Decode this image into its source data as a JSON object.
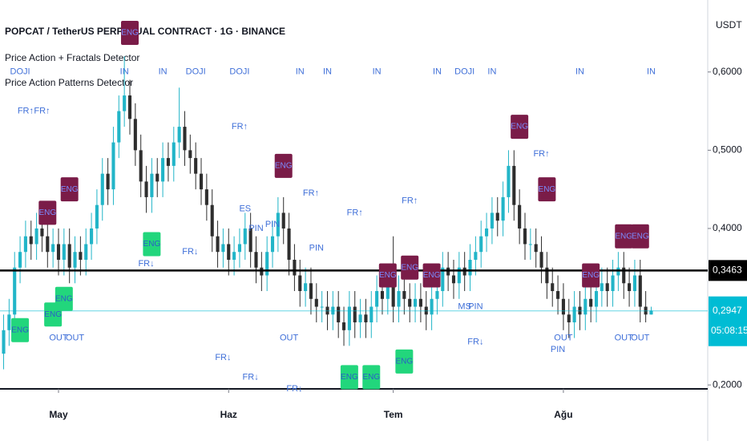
{
  "chart_data": {
    "type": "candlestick",
    "title": "POPCAT / TetherUS PERPETUAL CONTRACT · 1G · BINANCE",
    "indicators": [
      "Price Action + Fractals Detector",
      "Price Action Patterns Detector"
    ],
    "y_axis_label": "USDT",
    "x": [
      0,
      1,
      2,
      3,
      4,
      5,
      6,
      7,
      8,
      9,
      10,
      11,
      12,
      13,
      14,
      15,
      16,
      17,
      18,
      19,
      20,
      21,
      22,
      23,
      24,
      25,
      26,
      27,
      28,
      29,
      30,
      31,
      32,
      33,
      34,
      35,
      36,
      37,
      38,
      39,
      40,
      41,
      42,
      43,
      44,
      45,
      46,
      47,
      48,
      49,
      50,
      51,
      52,
      53,
      54,
      55,
      56,
      57,
      58,
      59,
      60,
      61,
      62,
      63,
      64,
      65,
      66,
      67,
      68,
      69,
      70,
      71,
      72,
      73,
      74,
      75,
      76,
      77,
      78,
      79,
      80,
      81,
      82,
      83,
      84,
      85,
      86,
      87,
      88,
      89,
      90,
      91,
      92,
      93,
      94,
      95,
      96,
      97,
      98,
      99,
      100,
      101,
      102,
      103,
      104,
      105,
      106,
      107,
      108,
      109,
      110,
      111,
      112,
      113,
      114,
      115,
      116,
      117,
      118
    ],
    "open": [
      0.24,
      0.27,
      0.29,
      0.35,
      0.37,
      0.39,
      0.38,
      0.4,
      0.39,
      0.37,
      0.38,
      0.36,
      0.38,
      0.35,
      0.37,
      0.36,
      0.38,
      0.4,
      0.43,
      0.47,
      0.45,
      0.51,
      0.55,
      0.57,
      0.54,
      0.5,
      0.46,
      0.44,
      0.47,
      0.46,
      0.49,
      0.48,
      0.51,
      0.53,
      0.5,
      0.49,
      0.47,
      0.45,
      0.43,
      0.39,
      0.37,
      0.38,
      0.36,
      0.37,
      0.38,
      0.4,
      0.37,
      0.35,
      0.34,
      0.37,
      0.39,
      0.42,
      0.4,
      0.36,
      0.34,
      0.32,
      0.33,
      0.31,
      0.3,
      0.3,
      0.29,
      0.3,
      0.28,
      0.27,
      0.3,
      0.28,
      0.29,
      0.28,
      0.3,
      0.32,
      0.31,
      0.33,
      0.3,
      0.32,
      0.31,
      0.3,
      0.31,
      0.3,
      0.29,
      0.31,
      0.32,
      0.35,
      0.34,
      0.33,
      0.35,
      0.34,
      0.36,
      0.37,
      0.39,
      0.4,
      0.42,
      0.41,
      0.44,
      0.48,
      0.43,
      0.4,
      0.38,
      0.38,
      0.37,
      0.35,
      0.33,
      0.32,
      0.31,
      0.29,
      0.28,
      0.3,
      0.29,
      0.31,
      0.3,
      0.32,
      0.33,
      0.32,
      0.34,
      0.35,
      0.33,
      0.32,
      0.34,
      0.3,
      0.29
    ],
    "high": [
      0.29,
      0.31,
      0.37,
      0.39,
      0.41,
      0.41,
      0.42,
      0.42,
      0.41,
      0.4,
      0.4,
      0.4,
      0.4,
      0.39,
      0.39,
      0.4,
      0.42,
      0.45,
      0.49,
      0.49,
      0.53,
      0.57,
      0.62,
      0.59,
      0.56,
      0.52,
      0.48,
      0.49,
      0.49,
      0.51,
      0.51,
      0.53,
      0.58,
      0.55,
      0.52,
      0.51,
      0.49,
      0.47,
      0.45,
      0.41,
      0.4,
      0.4,
      0.39,
      0.4,
      0.42,
      0.42,
      0.39,
      0.37,
      0.39,
      0.41,
      0.44,
      0.44,
      0.42,
      0.38,
      0.36,
      0.35,
      0.35,
      0.33,
      0.32,
      0.32,
      0.32,
      0.32,
      0.3,
      0.32,
      0.32,
      0.31,
      0.31,
      0.32,
      0.34,
      0.34,
      0.35,
      0.39,
      0.34,
      0.34,
      0.33,
      0.33,
      0.33,
      0.32,
      0.33,
      0.34,
      0.37,
      0.37,
      0.36,
      0.37,
      0.37,
      0.38,
      0.39,
      0.41,
      0.42,
      0.44,
      0.44,
      0.46,
      0.5,
      0.5,
      0.45,
      0.42,
      0.4,
      0.4,
      0.39,
      0.37,
      0.35,
      0.34,
      0.33,
      0.31,
      0.32,
      0.32,
      0.33,
      0.33,
      0.34,
      0.35,
      0.35,
      0.36,
      0.37,
      0.37,
      0.35,
      0.36,
      0.36,
      0.32,
      0.3
    ],
    "low": [
      0.22,
      0.25,
      0.27,
      0.33,
      0.35,
      0.36,
      0.36,
      0.37,
      0.35,
      0.35,
      0.34,
      0.34,
      0.33,
      0.33,
      0.34,
      0.34,
      0.36,
      0.38,
      0.41,
      0.43,
      0.43,
      0.49,
      0.53,
      0.52,
      0.48,
      0.44,
      0.42,
      0.42,
      0.44,
      0.44,
      0.46,
      0.46,
      0.49,
      0.48,
      0.47,
      0.45,
      0.43,
      0.41,
      0.37,
      0.35,
      0.35,
      0.34,
      0.34,
      0.35,
      0.36,
      0.35,
      0.33,
      0.32,
      0.32,
      0.35,
      0.37,
      0.38,
      0.34,
      0.32,
      0.3,
      0.3,
      0.29,
      0.28,
      0.28,
      0.27,
      0.27,
      0.26,
      0.25,
      0.25,
      0.26,
      0.26,
      0.26,
      0.26,
      0.28,
      0.29,
      0.29,
      0.28,
      0.28,
      0.29,
      0.28,
      0.28,
      0.28,
      0.27,
      0.27,
      0.29,
      0.3,
      0.32,
      0.31,
      0.31,
      0.32,
      0.32,
      0.34,
      0.35,
      0.37,
      0.38,
      0.39,
      0.39,
      0.42,
      0.41,
      0.38,
      0.36,
      0.36,
      0.35,
      0.33,
      0.31,
      0.3,
      0.29,
      0.27,
      0.26,
      0.26,
      0.27,
      0.27,
      0.28,
      0.28,
      0.3,
      0.3,
      0.3,
      0.32,
      0.31,
      0.3,
      0.3,
      0.28,
      0.28,
      0.29
    ],
    "close": [
      0.27,
      0.29,
      0.35,
      0.37,
      0.39,
      0.38,
      0.4,
      0.39,
      0.37,
      0.38,
      0.36,
      0.38,
      0.35,
      0.37,
      0.36,
      0.38,
      0.4,
      0.43,
      0.47,
      0.45,
      0.51,
      0.55,
      0.57,
      0.54,
      0.5,
      0.46,
      0.44,
      0.47,
      0.46,
      0.49,
      0.48,
      0.51,
      0.53,
      0.5,
      0.49,
      0.47,
      0.45,
      0.43,
      0.39,
      0.37,
      0.38,
      0.36,
      0.37,
      0.38,
      0.4,
      0.37,
      0.35,
      0.34,
      0.37,
      0.39,
      0.42,
      0.4,
      0.36,
      0.34,
      0.32,
      0.33,
      0.31,
      0.3,
      0.3,
      0.29,
      0.3,
      0.28,
      0.27,
      0.3,
      0.28,
      0.29,
      0.28,
      0.3,
      0.32,
      0.31,
      0.33,
      0.3,
      0.32,
      0.31,
      0.3,
      0.31,
      0.3,
      0.29,
      0.31,
      0.32,
      0.35,
      0.34,
      0.33,
      0.35,
      0.34,
      0.36,
      0.37,
      0.39,
      0.4,
      0.42,
      0.41,
      0.44,
      0.48,
      0.43,
      0.4,
      0.38,
      0.38,
      0.37,
      0.35,
      0.33,
      0.32,
      0.31,
      0.29,
      0.28,
      0.3,
      0.29,
      0.31,
      0.3,
      0.32,
      0.33,
      0.32,
      0.34,
      0.35,
      0.33,
      0.32,
      0.34,
      0.3,
      0.29,
      0.295
    ],
    "up_color": "#22b5c8",
    "down_color": "#2e2e2e",
    "xlim": [
      -0.66,
      128.3
    ],
    "xticks": [
      {
        "value": 10,
        "label": "May"
      },
      {
        "value": 41,
        "label": "Haz"
      },
      {
        "value": 71,
        "label": "Tem"
      },
      {
        "value": 102,
        "label": "Ağu"
      }
    ],
    "ylim": [
      0.195,
      0.692
    ],
    "yticks": [
      {
        "value": 0.2,
        "label": "0,2000"
      },
      {
        "value": 0.4,
        "label": "0,4000"
      },
      {
        "value": 0.5,
        "label": "0,5000"
      },
      {
        "value": 0.6,
        "label": "0,6000"
      }
    ],
    "hline": {
      "value": 0.3463,
      "label": "0,3463",
      "color": "#000000"
    },
    "last_price": {
      "value": 0.2947,
      "label": "0,2947",
      "countdown": "05:08:15",
      "color": "#00bcd4"
    },
    "annotations": [
      {
        "text": "ENG",
        "kind": "bear",
        "x": 8,
        "y": 0.42
      },
      {
        "text": "ENG",
        "kind": "bear",
        "x": 12,
        "y": 0.45
      },
      {
        "text": "ENG",
        "kind": "bear",
        "x": 23,
        "y": 0.65
      },
      {
        "text": "ENG",
        "kind": "bear",
        "x": 51,
        "y": 0.48
      },
      {
        "text": "ENG",
        "kind": "bear",
        "x": 70,
        "y": 0.34
      },
      {
        "text": "ENG",
        "kind": "bear",
        "x": 74,
        "y": 0.35
      },
      {
        "text": "ENG",
        "kind": "bear",
        "x": 78,
        "y": 0.34
      },
      {
        "text": "ENG",
        "kind": "bear",
        "x": 94,
        "y": 0.53
      },
      {
        "text": "ENG",
        "kind": "bear",
        "x": 99,
        "y": 0.45
      },
      {
        "text": "ENG",
        "kind": "bear",
        "x": 107,
        "y": 0.34
      },
      {
        "text": "ENG",
        "kind": "bear",
        "x": 113,
        "y": 0.39
      },
      {
        "text": "ENG",
        "kind": "bear",
        "x": 116,
        "y": 0.39
      },
      {
        "text": "ENG",
        "kind": "bull",
        "x": 3,
        "y": 0.27
      },
      {
        "text": "ENG",
        "kind": "bull",
        "x": 9,
        "y": 0.29
      },
      {
        "text": "ENG",
        "kind": "bull",
        "x": 11,
        "y": 0.31
      },
      {
        "text": "ENG",
        "kind": "bull",
        "x": 27,
        "y": 0.38
      },
      {
        "text": "ENG",
        "kind": "bull",
        "x": 63,
        "y": 0.21
      },
      {
        "text": "ENG",
        "kind": "bull",
        "x": 67,
        "y": 0.21
      },
      {
        "text": "ENG",
        "kind": "bull",
        "x": 73,
        "y": 0.23
      },
      {
        "text": "FR↑",
        "kind": "label",
        "x": 4,
        "y": 0.55
      },
      {
        "text": "FR↑",
        "kind": "label",
        "x": 7,
        "y": 0.55
      },
      {
        "text": "FR↑",
        "kind": "label",
        "x": 43,
        "y": 0.53
      },
      {
        "text": "FR↑",
        "kind": "label",
        "x": 56,
        "y": 0.445
      },
      {
        "text": "FR↑",
        "kind": "label",
        "x": 64,
        "y": 0.42
      },
      {
        "text": "FR↑",
        "kind": "label",
        "x": 74,
        "y": 0.435
      },
      {
        "text": "FR↑",
        "kind": "label",
        "x": 98,
        "y": 0.495
      },
      {
        "text": "FR↓",
        "kind": "label",
        "x": 26,
        "y": 0.355
      },
      {
        "text": "FR↓",
        "kind": "label",
        "x": 34,
        "y": 0.37
      },
      {
        "text": "FR↓",
        "kind": "label",
        "x": 40,
        "y": 0.235
      },
      {
        "text": "FR↓",
        "kind": "label",
        "x": 45,
        "y": 0.21
      },
      {
        "text": "FR↓",
        "kind": "label",
        "x": 53,
        "y": 0.195
      },
      {
        "text": "FR↓",
        "kind": "label",
        "x": 86,
        "y": 0.255
      },
      {
        "text": "IN",
        "kind": "label",
        "x": 22,
        "y": 0.6
      },
      {
        "text": "IN",
        "kind": "label",
        "x": 29,
        "y": 0.6
      },
      {
        "text": "IN",
        "kind": "label",
        "x": 54,
        "y": 0.6
      },
      {
        "text": "IN",
        "kind": "label",
        "x": 59,
        "y": 0.6
      },
      {
        "text": "IN",
        "kind": "label",
        "x": 68,
        "y": 0.6
      },
      {
        "text": "IN",
        "kind": "label",
        "x": 79,
        "y": 0.6
      },
      {
        "text": "IN",
        "kind": "label",
        "x": 89,
        "y": 0.6
      },
      {
        "text": "IN",
        "kind": "label",
        "x": 105,
        "y": 0.6
      },
      {
        "text": "IN",
        "kind": "label",
        "x": 118,
        "y": 0.6
      },
      {
        "text": "DOJI",
        "kind": "label",
        "x": 35,
        "y": 0.6
      },
      {
        "text": "DOJI",
        "kind": "label",
        "x": 43,
        "y": 0.6
      },
      {
        "text": "DOJI",
        "kind": "label",
        "x": 84,
        "y": 0.6
      },
      {
        "text": "DOJI",
        "kind": "label",
        "x": 3,
        "y": 0.6
      },
      {
        "text": "OUT",
        "kind": "label",
        "x": 10,
        "y": 0.26
      },
      {
        "text": "OUT",
        "kind": "label",
        "x": 13,
        "y": 0.26
      },
      {
        "text": "OUT",
        "kind": "label",
        "x": 52,
        "y": 0.26
      },
      {
        "text": "OUT",
        "kind": "label",
        "x": 102,
        "y": 0.26
      },
      {
        "text": "OUT",
        "kind": "label",
        "x": 113,
        "y": 0.26
      },
      {
        "text": "OUT",
        "kind": "label",
        "x": 116,
        "y": 0.26
      },
      {
        "text": "PIN",
        "kind": "label",
        "x": 46,
        "y": 0.4
      },
      {
        "text": "PIN",
        "kind": "label",
        "x": 49,
        "y": 0.405
      },
      {
        "text": "PIN",
        "kind": "label",
        "x": 57,
        "y": 0.375
      },
      {
        "text": "PIN",
        "kind": "label",
        "x": 86,
        "y": 0.3
      },
      {
        "text": "PIN",
        "kind": "label",
        "x": 101,
        "y": 0.245
      },
      {
        "text": "MS",
        "kind": "label",
        "x": 84,
        "y": 0.3
      },
      {
        "text": "ES",
        "kind": "label",
        "x": 44,
        "y": 0.425
      }
    ]
  }
}
